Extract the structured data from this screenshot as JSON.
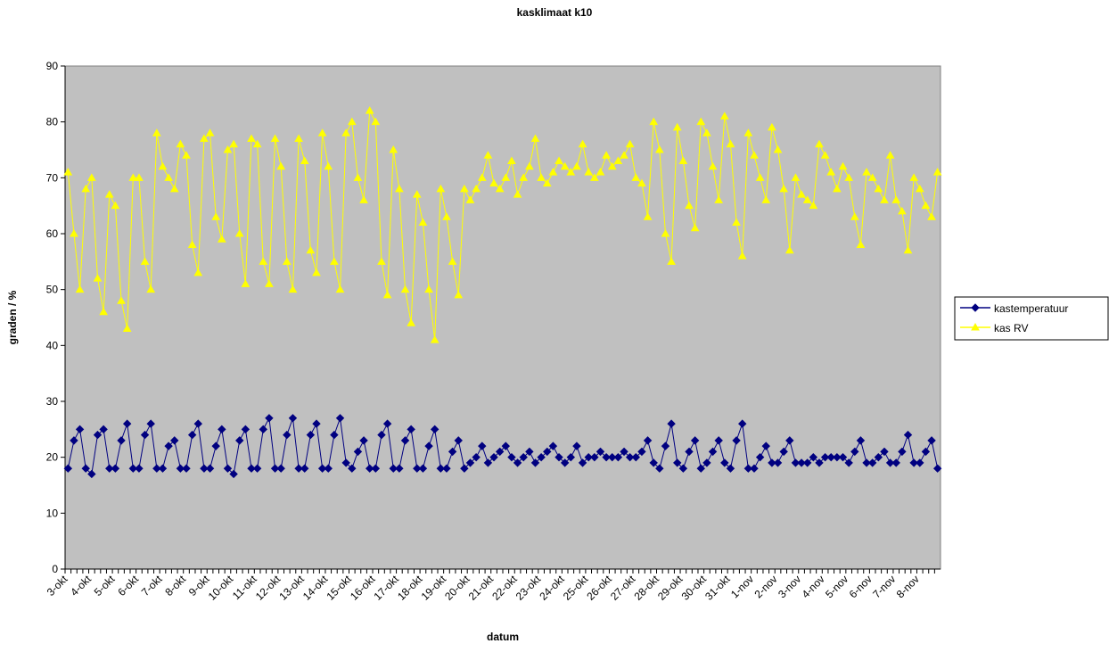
{
  "chart_data": {
    "type": "line",
    "title": "kasklimaat k10",
    "x_label": "datum",
    "y_label": "graden / %",
    "categories": [
      "3-okt",
      null,
      null,
      null,
      "4-okt",
      null,
      null,
      null,
      "5-okt",
      null,
      null,
      null,
      "6-okt",
      null,
      null,
      null,
      "7-okt",
      null,
      null,
      null,
      "8-okt",
      null,
      null,
      null,
      "9-okt",
      null,
      null,
      null,
      "10-okt",
      null,
      null,
      null,
      "11-okt",
      null,
      null,
      null,
      "12-okt",
      null,
      null,
      null,
      "13-okt",
      null,
      null,
      null,
      "14-okt",
      null,
      null,
      null,
      "15-okt",
      null,
      null,
      null,
      "16-okt",
      null,
      null,
      null,
      "17-okt",
      null,
      null,
      null,
      "18-okt",
      null,
      null,
      null,
      "19-okt",
      null,
      null,
      null,
      "20-okt",
      null,
      null,
      null,
      "21-okt",
      null,
      null,
      null,
      "22-okt",
      null,
      null,
      null,
      "23-okt",
      null,
      null,
      null,
      "24-okt",
      null,
      null,
      null,
      "25-okt",
      null,
      null,
      null,
      "26-okt",
      null,
      null,
      null,
      "27-okt",
      null,
      null,
      null,
      "28-okt",
      null,
      null,
      null,
      "29-okt",
      null,
      null,
      null,
      "30-okt",
      null,
      null,
      null,
      "31-okt",
      null,
      null,
      null,
      "1-nov",
      null,
      null,
      null,
      "2-nov",
      null,
      null,
      null,
      "3-nov",
      null,
      null,
      null,
      "4-nov",
      null,
      null,
      null,
      "5-nov",
      null,
      null,
      null,
      "6-nov",
      null,
      null,
      null,
      "7-nov",
      null,
      null,
      null,
      "8-nov",
      null,
      null,
      null
    ],
    "series": [
      {
        "name": "kastemperatuur",
        "color": "#000080",
        "marker": "diamond",
        "values": [
          18,
          23,
          25,
          18,
          17,
          24,
          25,
          18,
          18,
          23,
          26,
          18,
          18,
          24,
          26,
          18,
          18,
          22,
          23,
          18,
          18,
          24,
          26,
          18,
          18,
          22,
          25,
          18,
          17,
          23,
          25,
          18,
          18,
          25,
          27,
          18,
          18,
          24,
          27,
          18,
          18,
          24,
          26,
          18,
          18,
          24,
          27,
          19,
          18,
          21,
          23,
          18,
          18,
          24,
          26,
          18,
          18,
          23,
          25,
          18,
          18,
          22,
          25,
          18,
          18,
          21,
          23,
          18,
          19,
          20,
          22,
          19,
          20,
          21,
          22,
          20,
          19,
          20,
          21,
          19,
          20,
          21,
          22,
          20,
          19,
          20,
          22,
          19,
          20,
          20,
          21,
          20,
          20,
          20,
          21,
          20,
          20,
          21,
          23,
          19,
          18,
          22,
          26,
          19,
          18,
          21,
          23,
          18,
          19,
          21,
          23,
          19,
          18,
          23,
          26,
          18,
          18,
          20,
          22,
          19,
          19,
          21,
          23,
          19,
          19,
          19,
          20,
          19,
          20,
          20,
          20,
          20,
          19,
          21,
          23,
          19,
          19,
          20,
          21,
          19,
          19,
          21,
          24,
          19,
          19,
          21,
          23,
          18
        ]
      },
      {
        "name": "kas RV",
        "color": "#ffff00",
        "marker": "triangle",
        "values": [
          71,
          60,
          50,
          68,
          70,
          52,
          46,
          67,
          65,
          48,
          43,
          70,
          70,
          55,
          50,
          78,
          72,
          70,
          68,
          76,
          74,
          58,
          53,
          77,
          78,
          63,
          59,
          75,
          76,
          60,
          51,
          77,
          76,
          55,
          51,
          77,
          72,
          55,
          50,
          77,
          73,
          57,
          53,
          78,
          72,
          55,
          50,
          78,
          80,
          70,
          66,
          82,
          80,
          55,
          49,
          75,
          68,
          50,
          44,
          67,
          62,
          50,
          41,
          68,
          63,
          55,
          49,
          68,
          66,
          68,
          70,
          74,
          69,
          68,
          70,
          73,
          67,
          70,
          72,
          77,
          70,
          69,
          71,
          73,
          72,
          71,
          72,
          76,
          71,
          70,
          71,
          74,
          72,
          73,
          74,
          76,
          70,
          69,
          63,
          80,
          75,
          60,
          55,
          79,
          73,
          65,
          61,
          80,
          78,
          72,
          66,
          81,
          76,
          62,
          56,
          78,
          74,
          70,
          66,
          79,
          75,
          68,
          57,
          70,
          67,
          66,
          65,
          76,
          74,
          71,
          68,
          72,
          70,
          63,
          58,
          71,
          70,
          68,
          66,
          74,
          66,
          64,
          57,
          70,
          68,
          65,
          63,
          71
        ]
      }
    ],
    "ylim": [
      0,
      90
    ],
    "yticks": [
      0,
      10,
      20,
      30,
      40,
      50,
      60,
      70,
      80,
      90
    ],
    "legend": "right",
    "background": "#c0c0c0"
  }
}
